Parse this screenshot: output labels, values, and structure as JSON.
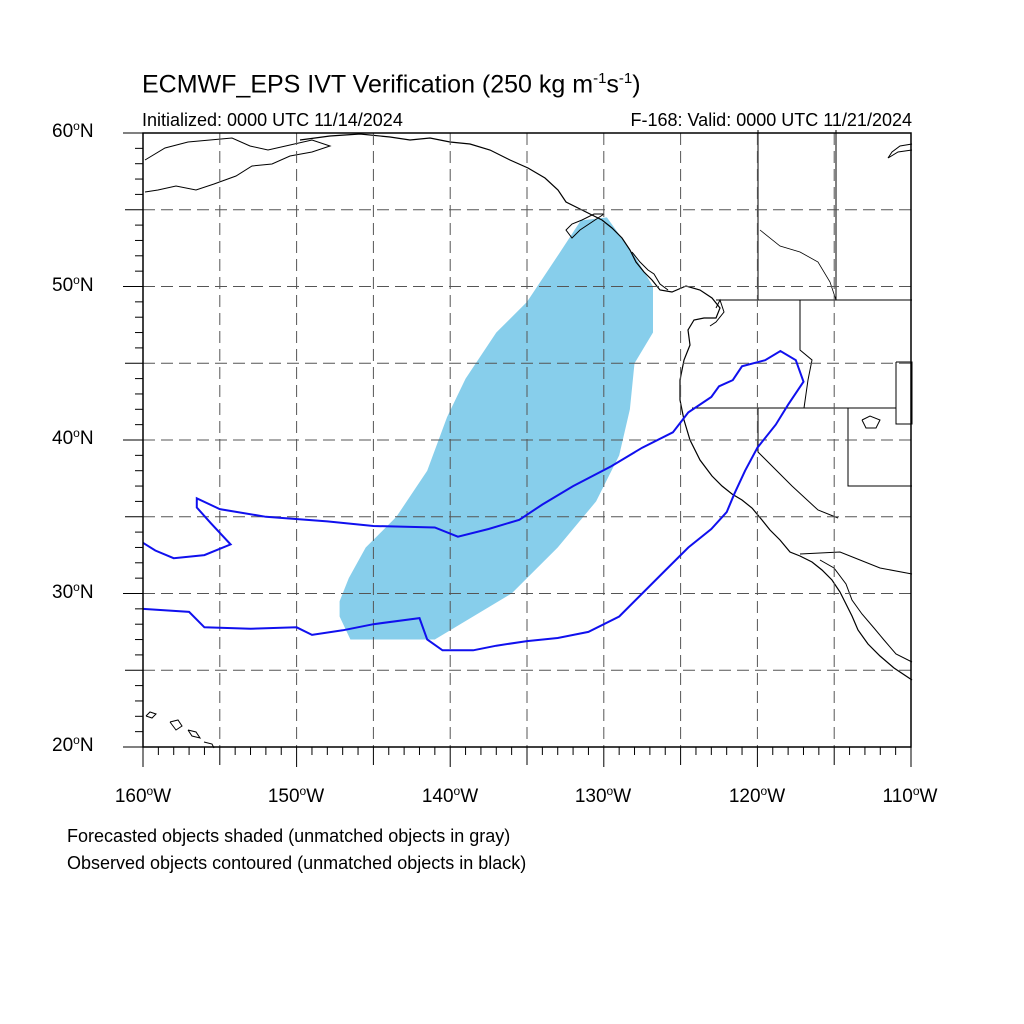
{
  "map": {
    "title_text": "ECMWF_EPS IVT Verification (250 kg m",
    "title_exp1": "-1",
    "title_mid": "s",
    "title_exp2": "-1",
    "title_end": ")",
    "initialized": "Initialized: 0000 UTC 11/14/2024",
    "valid": "F-168: Valid: 0000 UTC 11/21/2024",
    "extent": {
      "lon": [
        -160,
        -110
      ],
      "lat": [
        20,
        60
      ]
    },
    "lat_labels": [
      {
        "num": "60",
        "hemi": "N"
      },
      {
        "num": "50",
        "hemi": "N"
      },
      {
        "num": "40",
        "hemi": "N"
      },
      {
        "num": "30",
        "hemi": "N"
      },
      {
        "num": "20",
        "hemi": "N"
      }
    ],
    "lon_labels": [
      {
        "num": "160",
        "hemi": "W"
      },
      {
        "num": "150",
        "hemi": "W"
      },
      {
        "num": "140",
        "hemi": "W"
      },
      {
        "num": "130",
        "hemi": "W"
      },
      {
        "num": "120",
        "hemi": "W"
      },
      {
        "num": "110",
        "hemi": "W"
      }
    ],
    "gridlines": "dashed, every 5 degrees",
    "forecast_color": "#87ceeb",
    "observed_color": "#1010ee",
    "coast_color": "#000000",
    "note1": "Forecasted objects shaded (unmatched objects in gray)",
    "note2": "Observed objects contoured (unmatched objects in black)"
  },
  "objects": {
    "forecast_shaded": [
      [
        -146.5,
        27.0
      ],
      [
        -141.0,
        27.0
      ],
      [
        -136.0,
        30.0
      ],
      [
        -133.0,
        33.0
      ],
      [
        -130.5,
        36.0
      ],
      [
        -129.0,
        39.0
      ],
      [
        -128.3,
        42.0
      ],
      [
        -128.0,
        45.0
      ],
      [
        -126.8,
        47.0
      ],
      [
        -126.8,
        50.0
      ],
      [
        -128.0,
        52.0
      ],
      [
        -129.8,
        54.5
      ],
      [
        -131.5,
        54.3
      ],
      [
        -133.0,
        52.0
      ],
      [
        -135.0,
        49.0
      ],
      [
        -137.0,
        47.0
      ],
      [
        -139.0,
        44.0
      ],
      [
        -140.2,
        41.5
      ],
      [
        -141.5,
        38.0
      ],
      [
        -143.5,
        35.0
      ],
      [
        -145.5,
        33.0
      ],
      [
        -146.6,
        31.0
      ],
      [
        -147.2,
        29.5
      ],
      [
        -147.2,
        28.5
      ],
      [
        -146.5,
        27.0
      ]
    ],
    "observed_contours": [
      [
        [
          -160.0,
          29.0
        ],
        [
          -157.0,
          28.8
        ],
        [
          -156.0,
          27.8
        ],
        [
          -153.0,
          27.7
        ],
        [
          -150.0,
          27.8
        ],
        [
          -149.0,
          27.3
        ],
        [
          -147.0,
          27.6
        ],
        [
          -145.0,
          28.0
        ],
        [
          -142.0,
          28.4
        ],
        [
          -141.5,
          27.0
        ],
        [
          -140.5,
          26.3
        ],
        [
          -138.5,
          26.3
        ],
        [
          -137.0,
          26.6
        ],
        [
          -135.0,
          26.9
        ],
        [
          -133.0,
          27.1
        ],
        [
          -131.0,
          27.5
        ],
        [
          -129.0,
          28.5
        ],
        [
          -127.5,
          30.0
        ],
        [
          -126.0,
          31.5
        ],
        [
          -124.5,
          33.0
        ],
        [
          -123.0,
          34.2
        ],
        [
          -122.0,
          35.3
        ],
        [
          -121.5,
          36.5
        ],
        [
          -120.8,
          38.0
        ],
        [
          -120.0,
          39.5
        ],
        [
          -118.8,
          41.0
        ],
        [
          -118.0,
          42.3
        ],
        [
          -117.0,
          43.8
        ],
        [
          -117.5,
          45.2
        ],
        [
          -118.5,
          45.8
        ],
        [
          -119.5,
          45.2
        ],
        [
          -121.0,
          44.8
        ],
        [
          -121.6,
          43.9
        ],
        [
          -122.5,
          43.5
        ],
        [
          -123.0,
          42.8
        ],
        [
          -124.5,
          41.8
        ],
        [
          -125.5,
          40.5
        ],
        [
          -127.5,
          39.5
        ],
        [
          -129.5,
          38.3
        ],
        [
          -132.0,
          37.0
        ],
        [
          -134.0,
          35.8
        ],
        [
          -135.5,
          34.8
        ],
        [
          -137.5,
          34.2
        ],
        [
          -139.5,
          33.7
        ],
        [
          -141.0,
          34.3
        ],
        [
          -145.0,
          34.4
        ],
        [
          -148.0,
          34.7
        ],
        [
          -152.0,
          35.0
        ],
        [
          -155.0,
          35.5
        ],
        [
          -156.5,
          36.2
        ],
        [
          -156.5,
          35.6
        ],
        [
          -155.6,
          34.6
        ],
        [
          -154.3,
          33.2
        ],
        [
          -156.0,
          32.5
        ],
        [
          -158.0,
          32.3
        ],
        [
          -159.2,
          32.8
        ],
        [
          -160.0,
          33.3
        ]
      ]
    ]
  }
}
